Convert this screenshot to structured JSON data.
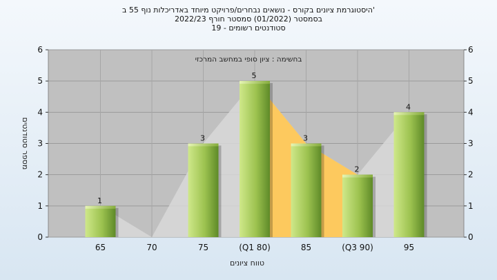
{
  "titles": {
    "line1": "'היסטוגרמת ציונים בקורס - נושאים נבחרים/פרויקט מיוחד באדריכלות נוף 55 ב",
    "line2": "בסמסטר  (01/2022)  סמסטר חורף 2022/23",
    "line3": "סטודנטים רשומים - 19"
  },
  "chart_data": {
    "type": "bar",
    "annotation": "בחשימה : ציון סופי במחשב המרכזי",
    "xlabel": "טווח ציונים",
    "ylabel": "מספר סטודנטים",
    "categories": [
      "65",
      "70",
      "75",
      "(Q1 80)",
      "85",
      "(Q3 90)",
      "95"
    ],
    "values": [
      1,
      0,
      3,
      5,
      3,
      2,
      4
    ],
    "data_labels": [
      "1",
      "",
      "3",
      "5",
      "3",
      "2",
      "4"
    ],
    "ylim": [
      0,
      6
    ],
    "yticks": [
      "0",
      "1",
      "2",
      "3",
      "4",
      "5",
      "6"
    ],
    "grid": true,
    "highlight_range": [
      "(Q1 80)",
      "(Q3 90)"
    ],
    "colors": {
      "plot_bg": "#c0c0c0",
      "bar_light": "#cfe88a",
      "bar_dark": "#5e8a28",
      "iqr_fill": "#ffc857",
      "area_fill": "#d8d8d8"
    }
  }
}
